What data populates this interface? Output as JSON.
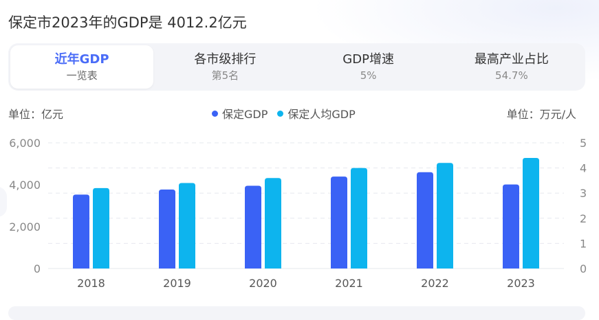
{
  "title": "保定市2023年的GDP是 4012.2亿元",
  "tabs": [
    {
      "label": "近年GDP",
      "sub": "一览表",
      "active": true
    },
    {
      "label": "各市级排行",
      "sub": "第5名",
      "active": false
    },
    {
      "label": "GDP增速",
      "sub": "5%",
      "active": false
    },
    {
      "label": "最高产业占比",
      "sub": "54.7%",
      "active": false
    }
  ],
  "unit_left": "单位：亿元",
  "unit_right": "单位：万元/人",
  "colors": {
    "gdp": "#3a62f5",
    "per_capita": "#0db4ee",
    "accent": "#4a6cf7"
  },
  "chart_data": {
    "type": "bar",
    "categories": [
      "2018",
      "2019",
      "2020",
      "2021",
      "2022",
      "2023"
    ],
    "series": [
      {
        "name": "保定GDP",
        "axis": "left",
        "values": [
          3530,
          3770,
          3950,
          4390,
          4600,
          4012.2
        ]
      },
      {
        "name": "保定人均GDP",
        "axis": "right",
        "values": [
          3.2,
          3.4,
          3.6,
          4.0,
          4.2,
          4.4
        ]
      }
    ],
    "y_left": {
      "min": 0,
      "max": 6000,
      "ticks": [
        "0",
        "2,000",
        "4,000",
        "6,000"
      ],
      "tick_values": [
        0,
        2000,
        4000,
        6000
      ]
    },
    "y_right": {
      "min": 0,
      "max": 5,
      "ticks": [
        "0",
        "1",
        "2",
        "3",
        "4",
        "5"
      ],
      "tick_values": [
        0,
        1,
        2,
        3,
        4,
        5
      ]
    },
    "grid": true,
    "legend_position": "top-center"
  }
}
